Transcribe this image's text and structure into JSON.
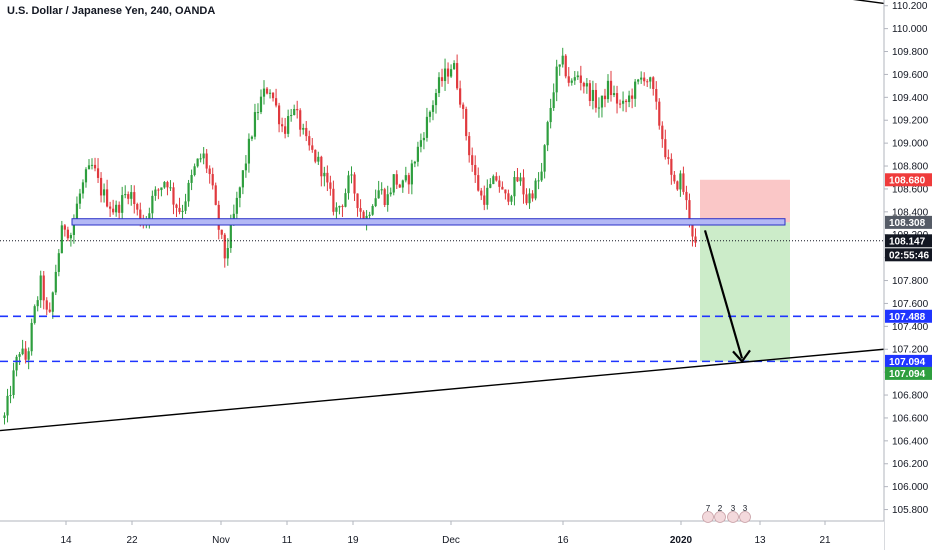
{
  "chart_data": {
    "type": "candlestick",
    "title": "U.S. Dollar / Japanese Yen, 240, OANDA",
    "xlabel": "",
    "ylabel": "",
    "ylim": [
      105.7,
      110.25
    ],
    "y_ticks": [
      105.8,
      106.0,
      106.2,
      106.4,
      106.6,
      106.8,
      107.0,
      107.2,
      107.4,
      107.6,
      107.8,
      108.0,
      108.2,
      108.4,
      108.6,
      108.8,
      109.0,
      109.2,
      109.4,
      109.6,
      109.8,
      110.0,
      110.2
    ],
    "y_tick_labels": [
      "105.800",
      "106.000",
      "106.200",
      "106.400",
      "106.600",
      "106.800",
      "107.000",
      "107.200",
      "107.400",
      "107.600",
      "107.800",
      "108.000",
      "108.200",
      "108.400",
      "108.600",
      "108.800",
      "109.000",
      "109.200",
      "109.400",
      "109.600",
      "109.800",
      "110.000",
      "110.200"
    ],
    "x_ticks": [
      "14",
      "22",
      "Nov",
      "11",
      "19",
      "Dec",
      "16",
      "2020",
      "13",
      "21"
    ],
    "colors": {
      "up": "#26a69a",
      "down": "#ef5350",
      "candle_up": "#2e9e3e",
      "candle_down": "#e0393e"
    },
    "series": [
      {
        "kind": "close",
        "values": [
          106.6,
          106.9,
          107.2,
          107.1,
          107.5,
          107.8,
          107.4,
          107.9,
          108.3,
          108.2,
          108.5,
          108.7,
          108.8,
          108.6,
          108.5,
          108.4,
          108.5,
          108.6,
          108.4,
          108.3,
          108.5,
          108.6,
          108.7,
          108.5,
          108.4,
          108.6,
          108.8,
          108.9,
          108.7,
          108.3,
          108.0,
          108.3,
          108.6,
          108.9,
          109.2,
          109.4,
          109.5,
          109.3,
          109.1,
          109.3,
          109.2,
          109.0,
          108.9,
          108.8,
          108.6,
          108.4,
          108.5,
          108.7,
          108.5,
          108.3,
          108.5,
          108.6,
          108.5,
          108.7,
          108.6,
          108.7,
          108.9,
          109.1,
          109.3,
          109.5,
          109.6,
          109.7,
          109.4,
          109.0,
          108.7,
          108.5,
          108.6,
          108.7,
          108.5,
          108.6,
          108.7,
          108.5,
          108.6,
          108.7,
          109.2,
          109.6,
          109.7,
          109.5,
          109.6,
          109.5,
          109.4,
          109.3,
          109.5,
          109.4,
          109.3,
          109.4,
          109.5,
          109.6,
          109.5,
          109.2,
          108.9,
          108.6,
          108.7,
          108.4,
          108.1
        ]
      }
    ],
    "drawings": {
      "support_zone": {
        "top": 108.34,
        "bottom": 108.285
      },
      "horizontal_levels": [
        107.488,
        107.094
      ],
      "trendline_start": 106.49,
      "trendline_end": 107.2,
      "upper_trendline_start": 110.3,
      "upper_trendline_end": 110.22,
      "position": {
        "stop": 108.68,
        "entry": 108.308,
        "target": 107.094
      },
      "arrow_to": 107.094,
      "current_price": 108.147,
      "countdown": "02:55:46"
    },
    "price_tags": [
      {
        "label": "108.680",
        "value": 108.68,
        "color": "#ef3b3b"
      },
      {
        "label": "108.308",
        "value": 108.308,
        "color": "#555b66"
      },
      {
        "label": "108.147",
        "value": 108.147,
        "color": "#131722"
      },
      {
        "label": "107.488",
        "value": 107.488,
        "color": "#1f35ff"
      },
      {
        "label": "107.094",
        "value": 107.094,
        "color": "#1f35ff"
      },
      {
        "label": "107.094",
        "value": 107.094,
        "color": "#2e9e3e"
      }
    ],
    "events": [
      "7",
      "2",
      "3",
      "3"
    ]
  }
}
